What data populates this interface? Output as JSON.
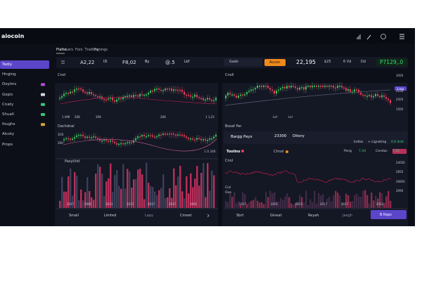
{
  "header": {
    "brand": "aiocoin"
  },
  "sidebar": {
    "items": [
      "Tadiy",
      "Hnging",
      "Doyiins",
      "Gopic",
      "Cnaty",
      "Shuall",
      "Ihughs",
      "Alcoty",
      "Props"
    ]
  },
  "tabs": [
    "Flatte",
    "Lers",
    "Fors",
    "Tnelting",
    "Fanings"
  ],
  "toolbar": {
    "left": [
      "A2,22",
      "ID",
      "F8,02",
      "By",
      "@.5",
      "Lkf"
    ],
    "search": "Gads",
    "button": "Accon",
    "right": [
      "22,195",
      "$25",
      "6 Vd",
      "Dd"
    ],
    "price": "P7129,.0"
  },
  "left_panel": {
    "chart1": {
      "title": "Cnol",
      "labels": [
        "1 IAM",
        "208",
        "209",
        "208",
        "1 1,23"
      ]
    },
    "chart2": {
      "title": "Dachdnal",
      "side": [
        "3CB",
        "300"
      ],
      "label": "1 l1 240"
    },
    "volume": {
      "title": "Pasyl/tid",
      "labels": [
        "2017",
        "2001",
        "2013",
        "2017",
        "2017",
        "2017",
        "2001"
      ]
    },
    "buttons": [
      "Small",
      "Limted",
      "Lapy",
      "Cmeet"
    ]
  },
  "right_panel": {
    "chart": {
      "title": "Cnoll",
      "axis": [
        "3450",
        "2100",
        "2450",
        "1500"
      ],
      "tag": "3 tsq",
      "labels": [
        "Lef",
        "Lel"
      ]
    },
    "info": {
      "section": "Bsoaf Per",
      "name": "Bargg Pays",
      "value": "23300",
      "extra": "Ditory",
      "links": [
        "Indlas",
        "+ Lignating",
        "0.0 drat"
      ]
    },
    "tabs": [
      "Toolins",
      "Chnol"
    ],
    "stats": [
      "Pong",
      "7.3d",
      "Cendas",
      "7.35"
    ],
    "line": {
      "title": "Cnol",
      "sub": "Ciol",
      "sub2": "Ooe",
      "axis": [
        "24050",
        "2850",
        "20850",
        "2090"
      ],
      "labels": [
        "2017",
        "2001",
        "2013",
        "2017",
        "2017",
        "2012"
      ]
    },
    "buttons": [
      "Sbrt",
      "Gineat",
      "Reyah",
      "Jeagh"
    ],
    "action": "B Kops"
  }
}
